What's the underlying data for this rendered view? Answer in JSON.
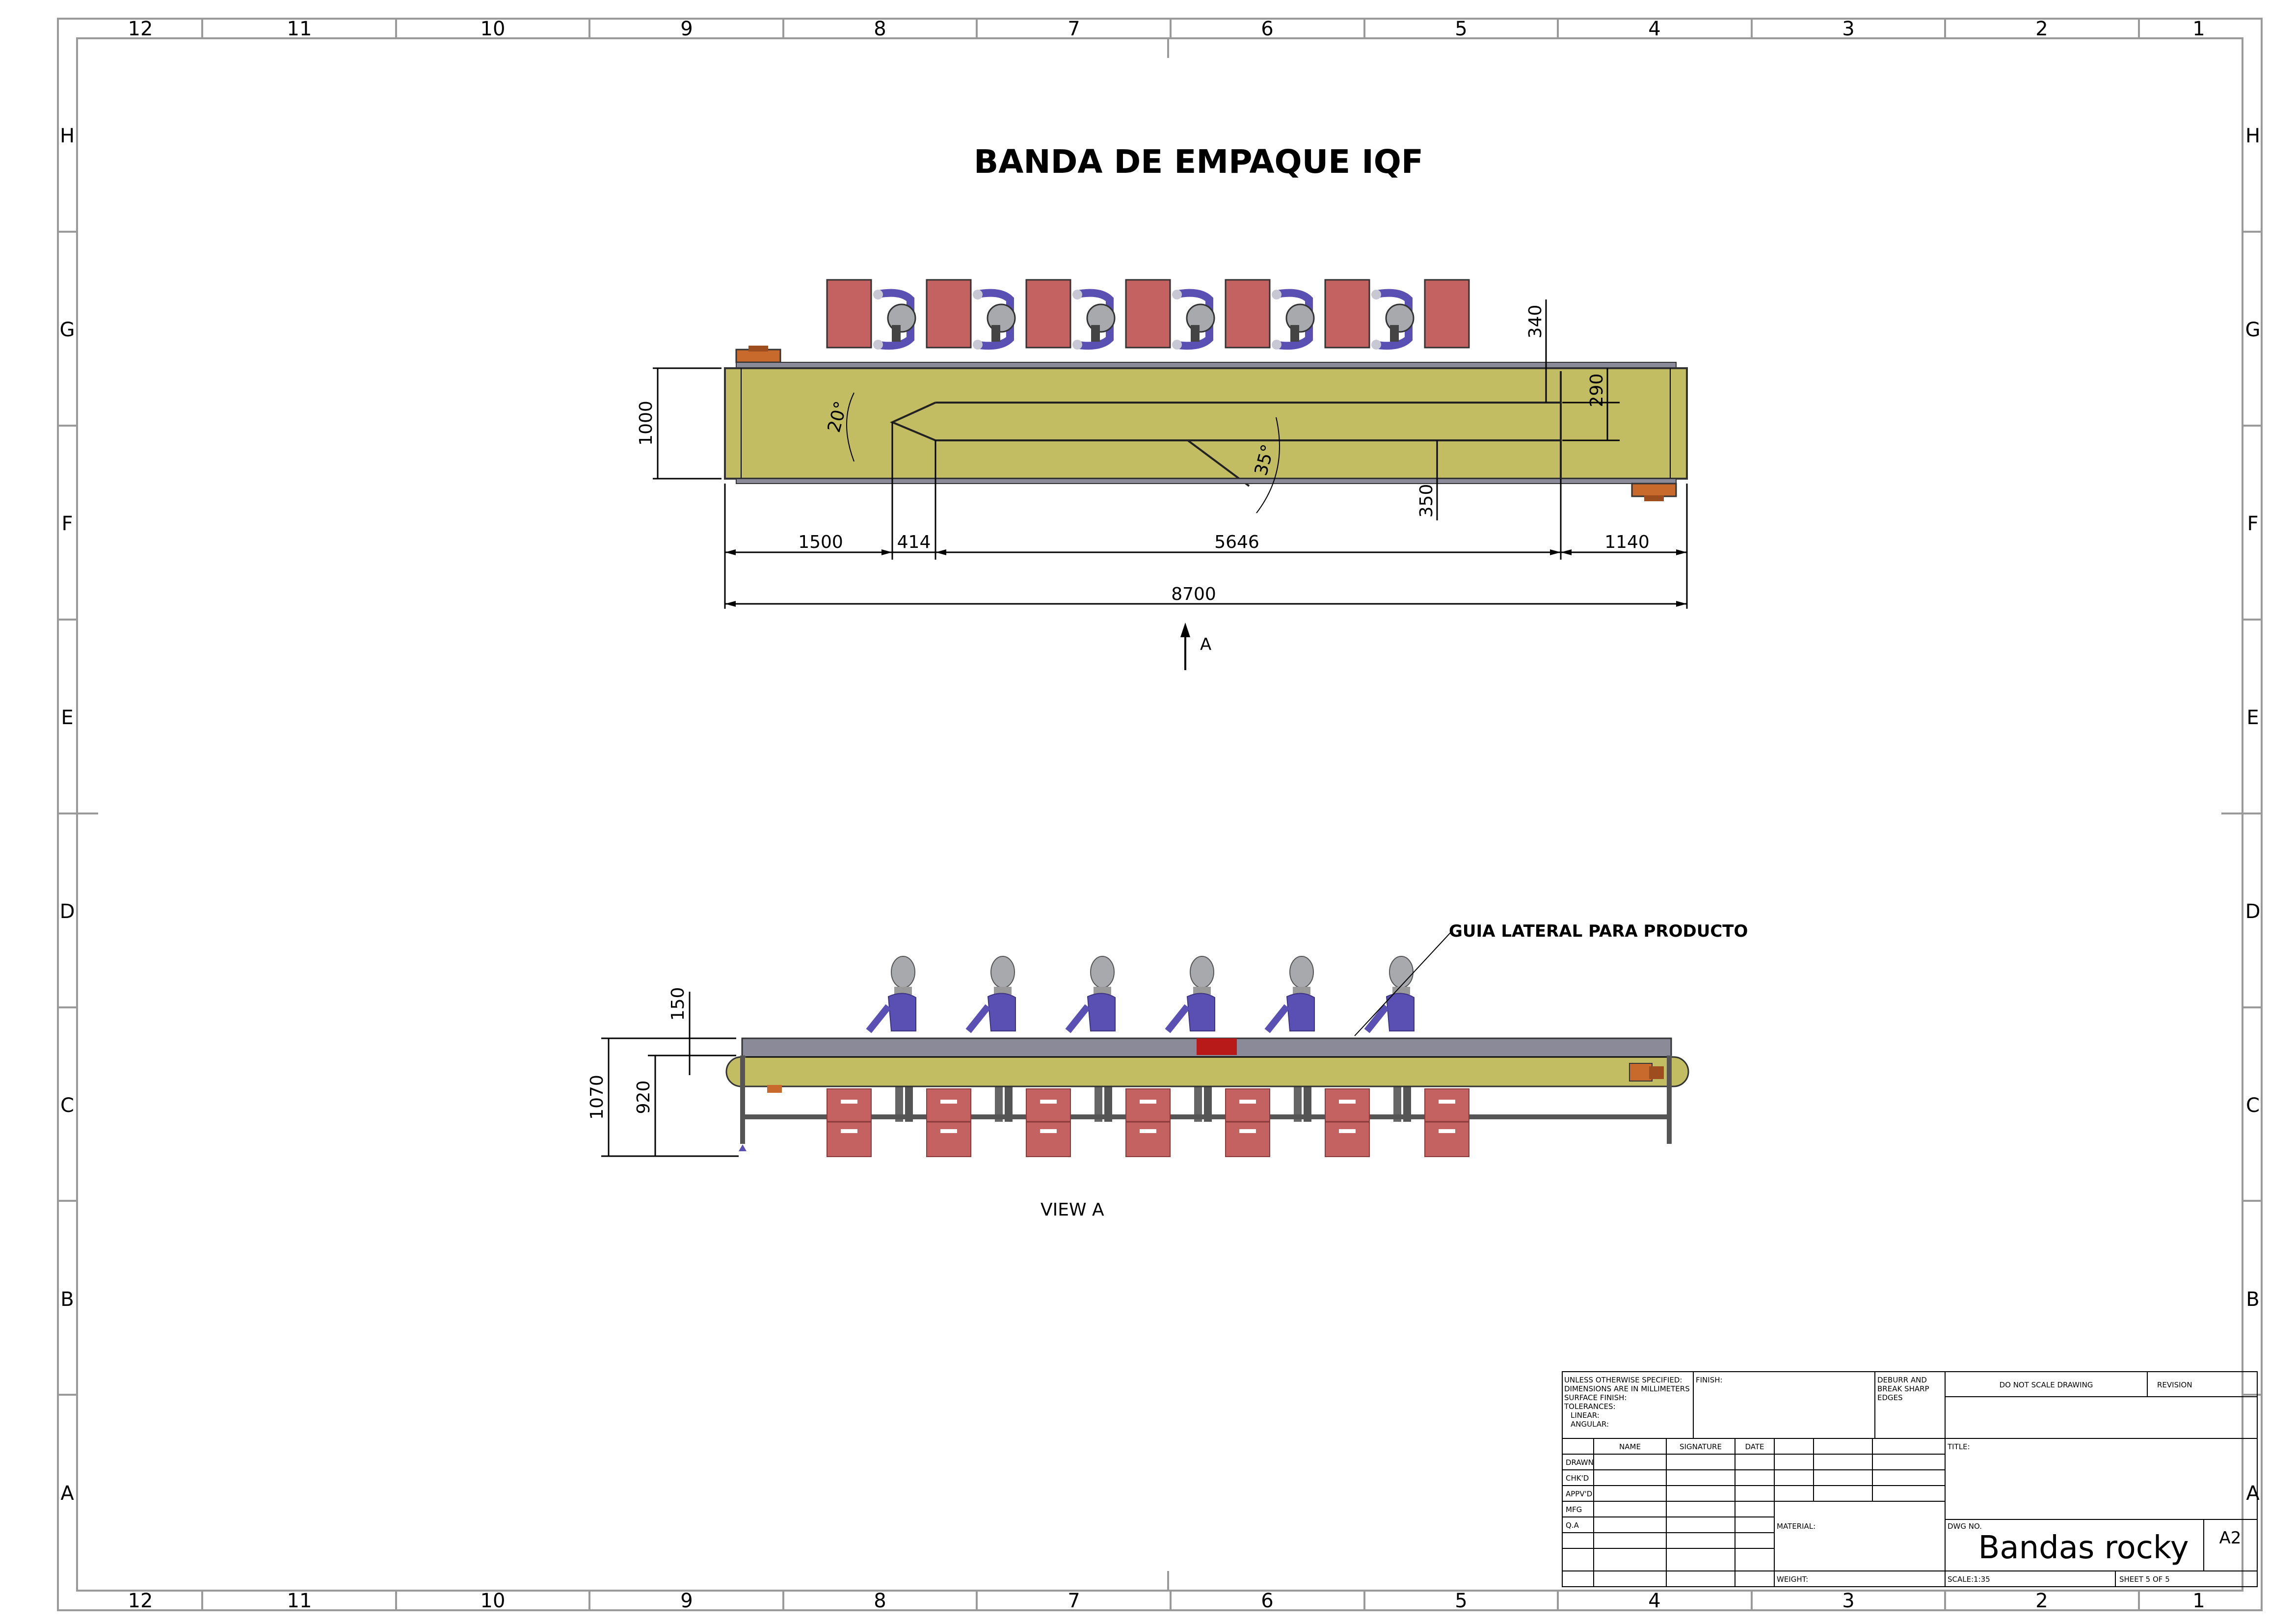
{
  "sheet": {
    "column_labels": [
      "12",
      "11",
      "10",
      "9",
      "8",
      "7",
      "6",
      "5",
      "4",
      "3",
      "2",
      "1"
    ],
    "row_labels": [
      "H",
      "G",
      "F",
      "E",
      "D",
      "C",
      "B",
      "A"
    ]
  },
  "title": "BANDA DE EMPAQUE IQF",
  "top_view": {
    "dimensions": {
      "overall_length": "8700",
      "seg_1": "1500",
      "seg_2": "414",
      "seg_3": "5646",
      "seg_4": "1140",
      "width": "1000",
      "gap_top": "340",
      "gap_right": "290",
      "gap_bottom": "350",
      "angle_left": "20°",
      "angle_mid": "35°"
    },
    "view_arrow_label": "A"
  },
  "side_view": {
    "callout": "GUIA LATERAL PARA PRODUCTO",
    "dimensions": {
      "overall_height": "1070",
      "belt_height": "920",
      "guide_height": "150"
    },
    "view_label": "VIEW A"
  },
  "title_block": {
    "notes_lines": [
      "UNLESS OTHERWISE SPECIFIED:",
      "DIMENSIONS ARE IN MILLIMETERS",
      "SURFACE FINISH:",
      "TOLERANCES:",
      "LINEAR:",
      "ANGULAR:"
    ],
    "finish_label": "FINISH:",
    "deburr_lines": [
      "DEBURR AND",
      "BREAK SHARP",
      "EDGES"
    ],
    "do_not_scale": "DO NOT SCALE DRAWING",
    "revision_label": "REVISION",
    "title_label": "TITLE:",
    "headers": [
      "NAME",
      "SIGNATURE",
      "DATE"
    ],
    "rows": [
      "DRAWN",
      "CHK'D",
      "APPV'D",
      "MFG",
      "Q.A"
    ],
    "material_label": "MATERIAL:",
    "weight_label": "WEIGHT:",
    "dwg_no_label": "DWG NO.",
    "dwg_no": "Bandas rocky",
    "size": "A2",
    "scale": "SCALE:1:35",
    "sheet": "SHEET 5 OF 5"
  },
  "colors": {
    "belt": "#c2bd63",
    "box": "#c46161",
    "worker": "#5a4fb3",
    "worker_head": "#a7a9ac",
    "guide": "#8a8a99",
    "motor": "#c86a2c",
    "accent_red": "#b81a1a"
  }
}
